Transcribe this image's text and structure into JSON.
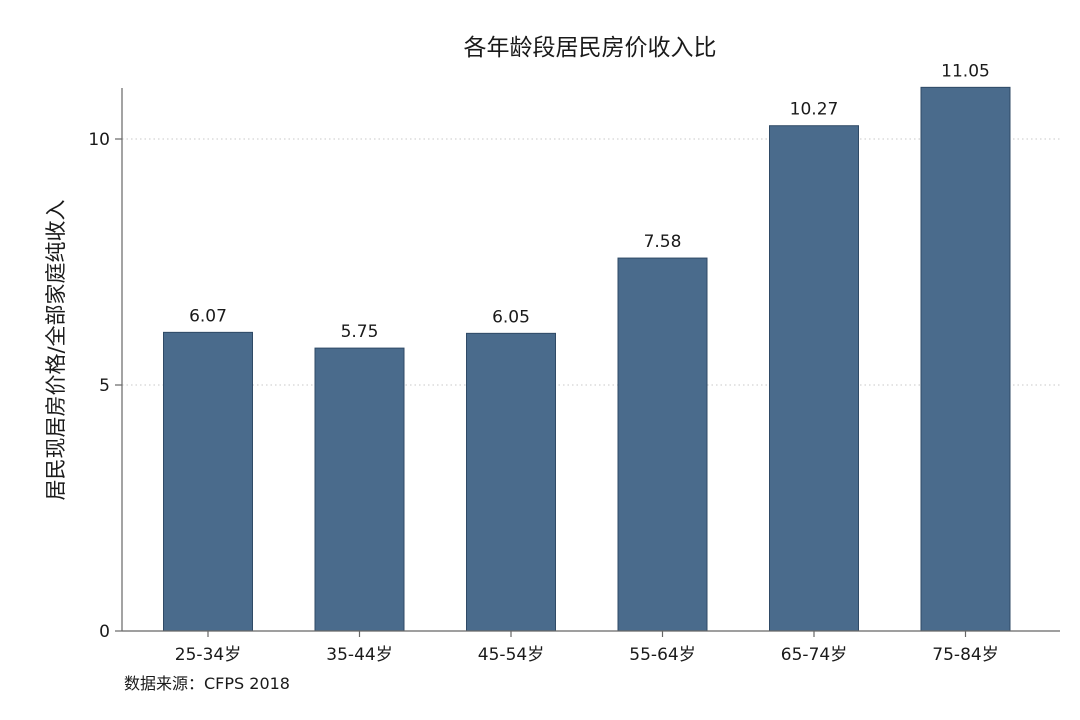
{
  "chart_data": {
    "type": "bar",
    "title": "各年龄段居民房价收入比",
    "xlabel": "",
    "ylabel": "居民现居房价格/全部家庭纯收入",
    "categories": [
      "25-34岁",
      "35-44岁",
      "45-54岁",
      "55-64岁",
      "65-74岁",
      "75-84岁"
    ],
    "values": [
      6.07,
      5.75,
      6.05,
      7.58,
      10.27,
      11.05
    ],
    "data_labels": [
      "6.07",
      "5.75",
      "6.05",
      "7.58",
      "10.27",
      "11.05"
    ],
    "yticks": [
      0,
      5,
      10
    ],
    "ytick_labels": [
      "0",
      "5",
      "10"
    ],
    "ylim": [
      0,
      11.05
    ],
    "grid": true,
    "bar_color": "#4a6b8c",
    "source": "数据来源：CFPS 2018"
  }
}
